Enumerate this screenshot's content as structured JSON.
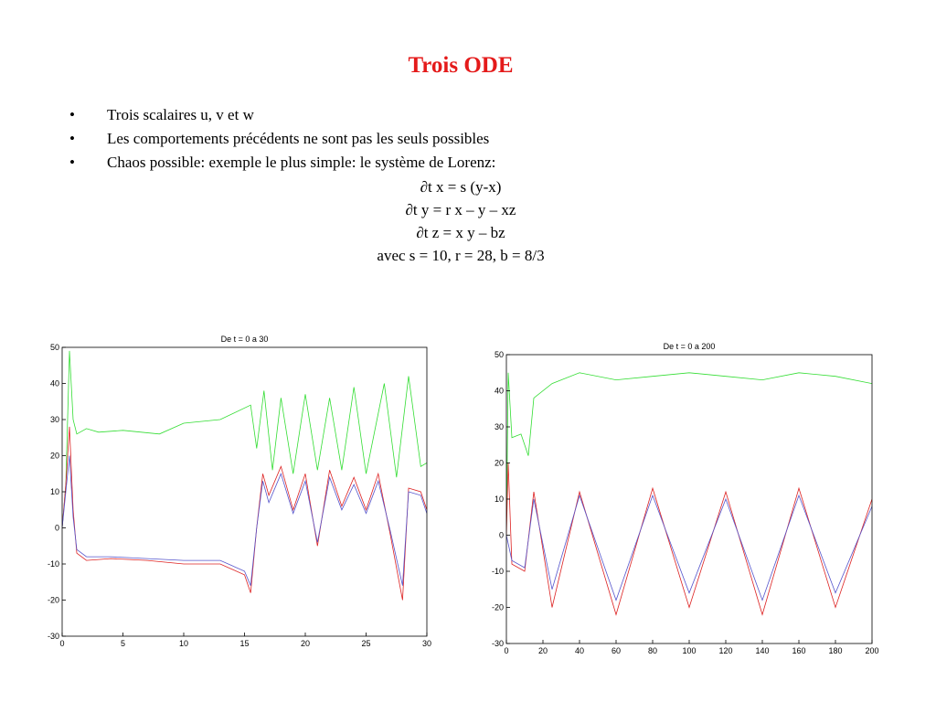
{
  "slide": {
    "title": "Trois ODE",
    "title_color": "#e41a1a",
    "bullet_glyph": "•",
    "bullets": [
      "Trois scalaires u, v et w",
      "Les comportements précédents ne sont pas les seuls possibles",
      "Chaos possible: exemple le plus simple: le système de Lorenz:"
    ],
    "equations": [
      "∂t x = s (y-x)",
      "∂t y = r x – y – xz",
      "∂t z = x y – bz",
      "avec s = 10, r = 28, b = 8/3"
    ]
  },
  "chart_data": [
    {
      "type": "line",
      "title": "De t = 0 a 30",
      "xlim": [
        0,
        30
      ],
      "ylim": [
        -30,
        50
      ],
      "xticks": [
        0,
        5,
        10,
        15,
        20,
        25,
        30
      ],
      "yticks": [
        -30,
        -20,
        -10,
        0,
        10,
        20,
        30,
        40,
        50
      ],
      "series": [
        {
          "color": "#33dd33",
          "values": [
            [
              0,
              0
            ],
            [
              0.3,
              12
            ],
            [
              0.6,
              49
            ],
            [
              0.9,
              30
            ],
            [
              1.2,
              26
            ],
            [
              2,
              27.5
            ],
            [
              3,
              26.5
            ],
            [
              5,
              27
            ],
            [
              8,
              26
            ],
            [
              10,
              29
            ],
            [
              13,
              30
            ],
            [
              15.5,
              34
            ],
            [
              16,
              22
            ],
            [
              16.6,
              38
            ],
            [
              17.3,
              16
            ],
            [
              18,
              36
            ],
            [
              19,
              15
            ],
            [
              20,
              37
            ],
            [
              21,
              16
            ],
            [
              22,
              36
            ],
            [
              23,
              16
            ],
            [
              24,
              39
            ],
            [
              25,
              15
            ],
            [
              26.5,
              40
            ],
            [
              27.5,
              14
            ],
            [
              28.5,
              42
            ],
            [
              29.5,
              17
            ],
            [
              30,
              18
            ]
          ]
        },
        {
          "color": "#dd2222",
          "values": [
            [
              0,
              0
            ],
            [
              0.3,
              12
            ],
            [
              0.6,
              28
            ],
            [
              0.9,
              5
            ],
            [
              1.2,
              -7
            ],
            [
              2,
              -9
            ],
            [
              4,
              -8.5
            ],
            [
              7,
              -9
            ],
            [
              10,
              -10
            ],
            [
              13,
              -10
            ],
            [
              15,
              -13
            ],
            [
              15.5,
              -18
            ],
            [
              16,
              0
            ],
            [
              16.5,
              15
            ],
            [
              17,
              9
            ],
            [
              18,
              17
            ],
            [
              19,
              5
            ],
            [
              20,
              15
            ],
            [
              21,
              -5
            ],
            [
              22,
              16
            ],
            [
              23,
              6
            ],
            [
              24,
              14
            ],
            [
              25,
              5
            ],
            [
              26,
              15
            ],
            [
              27,
              -2
            ],
            [
              28,
              -20
            ],
            [
              28.5,
              11
            ],
            [
              29.5,
              10
            ],
            [
              30,
              5
            ]
          ]
        },
        {
          "color": "#5555cc",
          "values": [
            [
              0,
              0
            ],
            [
              0.3,
              10
            ],
            [
              0.6,
              20
            ],
            [
              0.9,
              3
            ],
            [
              1.2,
              -6
            ],
            [
              2,
              -8
            ],
            [
              4,
              -8
            ],
            [
              7,
              -8.5
            ],
            [
              10,
              -9
            ],
            [
              13,
              -9
            ],
            [
              15,
              -12
            ],
            [
              15.5,
              -16
            ],
            [
              16,
              0
            ],
            [
              16.5,
              13
            ],
            [
              17,
              7
            ],
            [
              18,
              15
            ],
            [
              19,
              4
            ],
            [
              20,
              13
            ],
            [
              21,
              -4
            ],
            [
              22,
              14
            ],
            [
              23,
              5
            ],
            [
              24,
              12
            ],
            [
              25,
              4
            ],
            [
              26,
              13
            ],
            [
              27,
              -1
            ],
            [
              28,
              -16
            ],
            [
              28.5,
              10
            ],
            [
              29.5,
              9
            ],
            [
              30,
              4
            ]
          ]
        }
      ]
    },
    {
      "type": "line",
      "title": "De t = 0 a 200",
      "xlim": [
        0,
        200
      ],
      "ylim": [
        -30,
        50
      ],
      "xticks": [
        0,
        20,
        40,
        60,
        80,
        100,
        120,
        140,
        160,
        180,
        200
      ],
      "yticks": [
        -30,
        -20,
        -10,
        0,
        10,
        20,
        30,
        40,
        50
      ],
      "series": [
        {
          "color": "#33dd33",
          "values": [
            [
              0,
              0
            ],
            [
              1,
              45
            ],
            [
              3,
              27
            ],
            [
              8,
              28
            ],
            [
              12,
              22
            ],
            [
              15,
              38
            ],
            [
              25,
              42
            ],
            [
              40,
              45
            ],
            [
              60,
              43
            ],
            [
              80,
              44
            ],
            [
              100,
              45
            ],
            [
              120,
              44
            ],
            [
              140,
              43
            ],
            [
              160,
              45
            ],
            [
              180,
              44
            ],
            [
              200,
              42
            ]
          ]
        },
        {
          "color": "#dd2222",
          "values": [
            [
              0,
              0
            ],
            [
              1,
              20
            ],
            [
              3,
              -8
            ],
            [
              10,
              -10
            ],
            [
              15,
              12
            ],
            [
              25,
              -20
            ],
            [
              40,
              12
            ],
            [
              60,
              -22
            ],
            [
              80,
              13
            ],
            [
              100,
              -20
            ],
            [
              120,
              12
            ],
            [
              140,
              -22
            ],
            [
              160,
              13
            ],
            [
              180,
              -20
            ],
            [
              200,
              10
            ]
          ]
        },
        {
          "color": "#5555cc",
          "values": [
            [
              0,
              0
            ],
            [
              3,
              -7
            ],
            [
              10,
              -9
            ],
            [
              15,
              10
            ],
            [
              25,
              -15
            ],
            [
              40,
              11
            ],
            [
              60,
              -18
            ],
            [
              80,
              11
            ],
            [
              100,
              -16
            ],
            [
              120,
              10
            ],
            [
              140,
              -18
            ],
            [
              160,
              11
            ],
            [
              180,
              -16
            ],
            [
              200,
              8
            ]
          ]
        }
      ]
    }
  ]
}
